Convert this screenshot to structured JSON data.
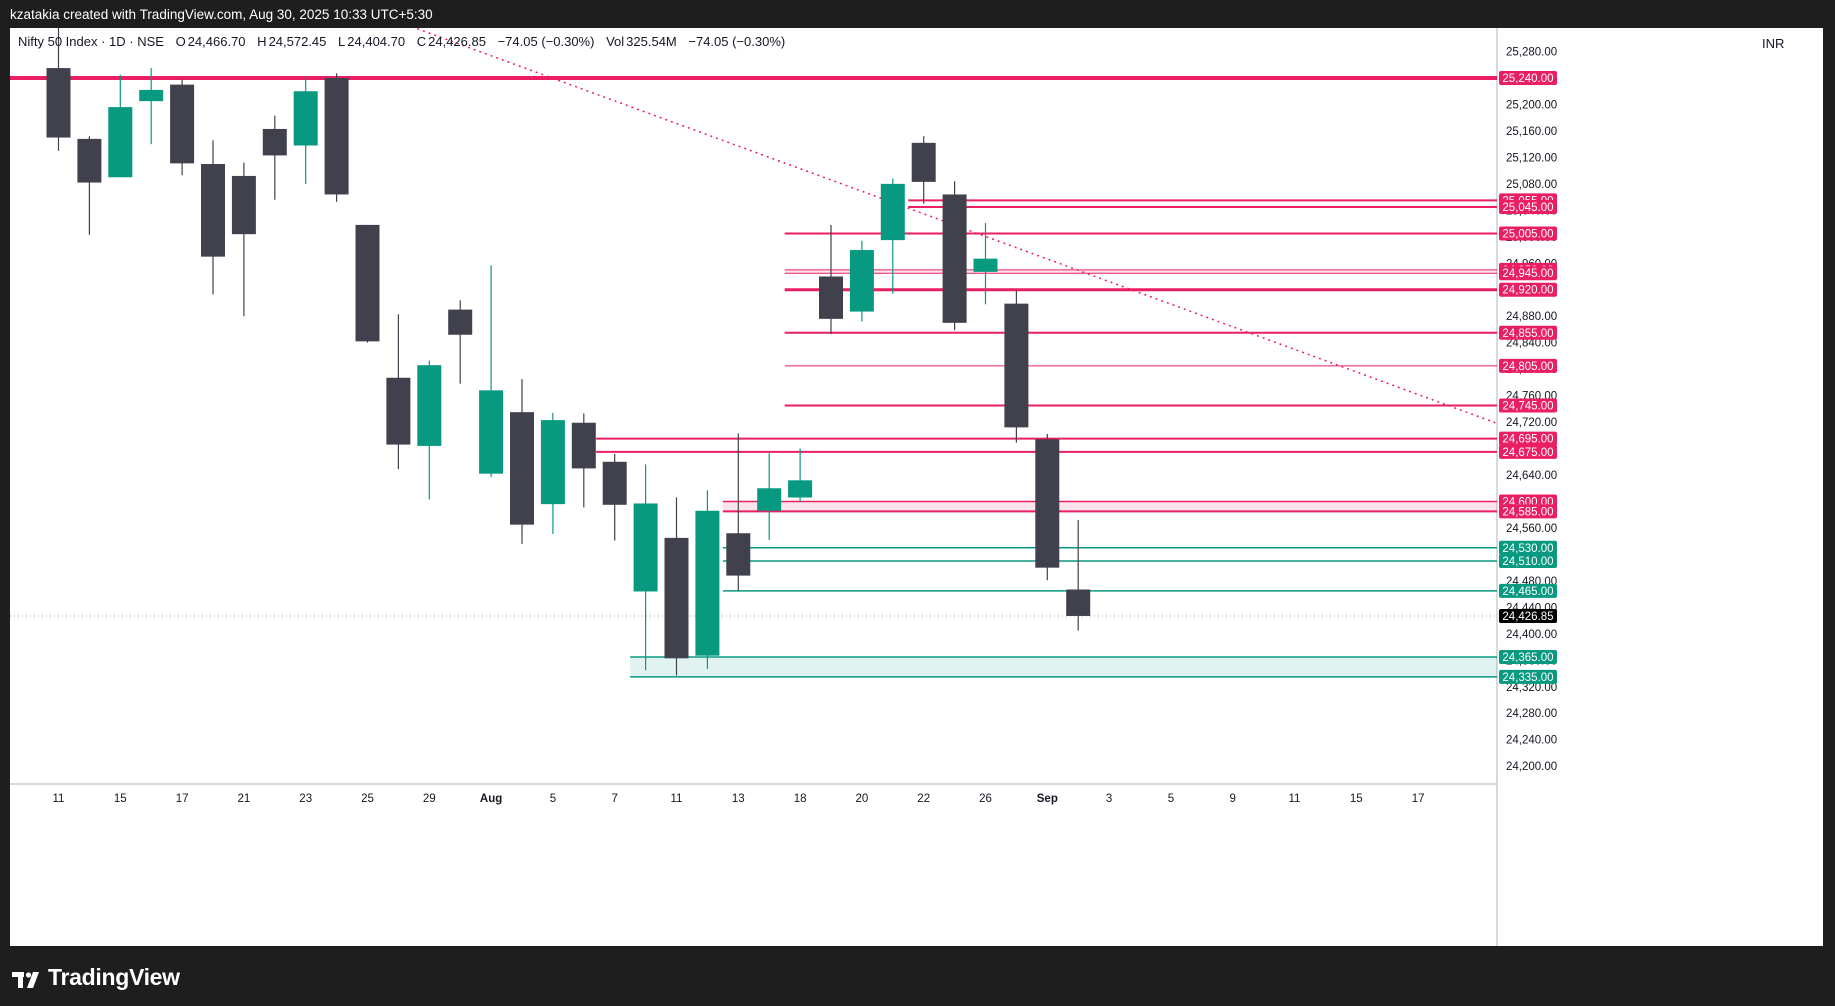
{
  "header": {
    "attribution": "kzatakia created with TradingView.com, Aug 30, 2025 10:33 UTC+5:30"
  },
  "legend": {
    "symbol": "Nifty 50 Index · 1D · NSE",
    "open_label": "O",
    "open": "24,466.70",
    "high_label": "H",
    "high": "24,572.45",
    "low_label": "L",
    "low": "24,404.70",
    "close_label": "C",
    "close": "24,426.85",
    "change": "−74.05 (−0.30%)",
    "vol_label": "Vol",
    "vol": "325.54M",
    "vol_change": "−74.05 (−0.30%)"
  },
  "currency": "INR",
  "footer": {
    "brand": "TradingView"
  },
  "colors": {
    "up": "#089981",
    "down": "#40414d",
    "resistance": "#e91e63",
    "support": "#089981",
    "last_price": "#000000"
  },
  "chart_data": {
    "type": "candlestick",
    "title": "Nifty 50 Index · 1D · NSE",
    "ylim": [
      24160,
      25300
    ],
    "y_ticks": [
      24200,
      24240,
      24280,
      24320,
      24360,
      24400,
      24440,
      24480,
      24520,
      24560,
      24600,
      24640,
      24680,
      24720,
      24760,
      24800,
      24840,
      24880,
      24920,
      24960,
      25000,
      25040,
      25080,
      25120,
      25160,
      25200,
      25240,
      25280
    ],
    "x_labels": [
      {
        "i": 0,
        "label": "11"
      },
      {
        "i": 2,
        "label": "15"
      },
      {
        "i": 4,
        "label": "17"
      },
      {
        "i": 6,
        "label": "21"
      },
      {
        "i": 8,
        "label": "23"
      },
      {
        "i": 10,
        "label": "25"
      },
      {
        "i": 12,
        "label": "29"
      },
      {
        "i": 14,
        "label": "Aug",
        "bold": true
      },
      {
        "i": 16,
        "label": "5"
      },
      {
        "i": 18,
        "label": "7"
      },
      {
        "i": 20,
        "label": "11"
      },
      {
        "i": 22,
        "label": "13"
      },
      {
        "i": 24,
        "label": "18"
      },
      {
        "i": 26,
        "label": "20"
      },
      {
        "i": 28,
        "label": "22"
      },
      {
        "i": 30,
        "label": "26"
      },
      {
        "i": 32,
        "label": "Sep",
        "bold": true
      },
      {
        "i": 34,
        "label": "3"
      },
      {
        "i": 36,
        "label": "5"
      },
      {
        "i": 38,
        "label": "9"
      },
      {
        "i": 40,
        "label": "11"
      },
      {
        "i": 42,
        "label": "15"
      },
      {
        "i": 44,
        "label": "17"
      }
    ],
    "candles": [
      {
        "date": "Jul 11",
        "o": 25255,
        "h": 25322,
        "l": 25130,
        "c": 25150
      },
      {
        "date": "Jul 14",
        "o": 25148,
        "h": 25152,
        "l": 25003,
        "c": 25082
      },
      {
        "date": "Jul 15",
        "o": 25090,
        "h": 25245,
        "l": 25090,
        "c": 25196
      },
      {
        "date": "Jul 16",
        "o": 25205,
        "h": 25255,
        "l": 25140,
        "c": 25222
      },
      {
        "date": "Jul 17",
        "o": 25230,
        "h": 25238,
        "l": 25093,
        "c": 25111
      },
      {
        "date": "Jul 18",
        "o": 25110,
        "h": 25146,
        "l": 24913,
        "c": 24970
      },
      {
        "date": "Jul 21",
        "o": 25092,
        "h": 25112,
        "l": 24880,
        "c": 25004
      },
      {
        "date": "Jul 22",
        "o": 25163,
        "h": 25183,
        "l": 25056,
        "c": 25123
      },
      {
        "date": "Jul 23",
        "o": 25138,
        "h": 25243,
        "l": 25080,
        "c": 25220
      },
      {
        "date": "Jul 24",
        "o": 25240,
        "h": 25247,
        "l": 25053,
        "c": 25064
      },
      {
        "date": "Jul 25",
        "o": 25018,
        "h": 25018,
        "l": 24840,
        "c": 24842
      },
      {
        "date": "Jul 28",
        "o": 24787,
        "h": 24883,
        "l": 24649,
        "c": 24686
      },
      {
        "date": "Jul 29",
        "o": 24684,
        "h": 24813,
        "l": 24603,
        "c": 24806
      },
      {
        "date": "Jul 30",
        "o": 24890,
        "h": 24904,
        "l": 24778,
        "c": 24852
      },
      {
        "date": "Jul 31",
        "o": 24642,
        "h": 24957,
        "l": 24637,
        "c": 24768
      },
      {
        "date": "Aug 1",
        "o": 24735,
        "h": 24785,
        "l": 24536,
        "c": 24565
      },
      {
        "date": "Aug 4",
        "o": 24596,
        "h": 24734,
        "l": 24551,
        "c": 24723
      },
      {
        "date": "Aug 5",
        "o": 24719,
        "h": 24733,
        "l": 24591,
        "c": 24650
      },
      {
        "date": "Aug 6",
        "o": 24660,
        "h": 24672,
        "l": 24541,
        "c": 24595
      },
      {
        "date": "Aug 7",
        "o": 24464,
        "h": 24656,
        "l": 24345,
        "c": 24597
      },
      {
        "date": "Aug 8",
        "o": 24545,
        "h": 24606,
        "l": 24337,
        "c": 24363
      },
      {
        "date": "Aug 11",
        "o": 24367,
        "h": 24617,
        "l": 24347,
        "c": 24586
      },
      {
        "date": "Aug 12",
        "o": 24552,
        "h": 24703,
        "l": 24465,
        "c": 24488
      },
      {
        "date": "Aug 13",
        "o": 24586,
        "h": 24673,
        "l": 24542,
        "c": 24620
      },
      {
        "date": "Aug 14",
        "o": 24606,
        "h": 24680,
        "l": 24600,
        "c": 24632
      },
      {
        "date": "Aug 18",
        "o": 24940,
        "h": 25018,
        "l": 24853,
        "c": 24876
      },
      {
        "date": "Aug 19",
        "o": 24887,
        "h": 24994,
        "l": 24872,
        "c": 24980
      },
      {
        "date": "Aug 20",
        "o": 24995,
        "h": 25088,
        "l": 24914,
        "c": 25080
      },
      {
        "date": "Aug 21",
        "o": 25142,
        "h": 25152,
        "l": 25050,
        "c": 25083
      },
      {
        "date": "Aug 22",
        "o": 25064,
        "h": 25084,
        "l": 24859,
        "c": 24870
      },
      {
        "date": "Aug 25",
        "o": 24947,
        "h": 25021,
        "l": 24898,
        "c": 24967
      },
      {
        "date": "Aug 26",
        "o": 24899,
        "h": 24919,
        "l": 24689,
        "c": 24712
      },
      {
        "date": "Aug 28",
        "o": 24694,
        "h": 24702,
        "l": 24481,
        "c": 24500
      },
      {
        "date": "Aug 29",
        "o": 24467,
        "h": 24572,
        "l": 24405,
        "c": 24427
      }
    ],
    "horizontal_lines": [
      {
        "price": 25240.0,
        "label": "25,240.00",
        "color": "#e91e63",
        "from": -1,
        "width": 4
      },
      {
        "price": 25055.0,
        "label": "25,055.00",
        "color": "#e91e63",
        "from": 27.5,
        "width": 2
      },
      {
        "price": 25045.0,
        "label": "25,045.00",
        "color": "#e91e63",
        "from": 27.5,
        "width": 2
      },
      {
        "price": 25005.0,
        "label": "25,005.00",
        "color": "#e91e63",
        "from": 23.5,
        "width": 2
      },
      {
        "price": 24950.0,
        "label": "24,950.00",
        "color": "#e91e63",
        "from": 23.5,
        "width": 1
      },
      {
        "price": 24945.0,
        "label": "24,945.00",
        "color": "#e91e63",
        "from": 23.5,
        "width": 1
      },
      {
        "price": 24920.0,
        "label": "24,920.00",
        "color": "#e91e63",
        "from": 23.5,
        "width": 3
      },
      {
        "price": 24855.0,
        "label": "24,855.00",
        "color": "#e91e63",
        "from": 23.5,
        "width": 2
      },
      {
        "price": 24805.0,
        "label": "24,805.00",
        "color": "#e91e63",
        "from": 23.5,
        "width": 1
      },
      {
        "price": 24745.0,
        "label": "24,745.00",
        "color": "#e91e63",
        "from": 23.5,
        "width": 2
      },
      {
        "price": 24695.0,
        "label": "24,695.00",
        "color": "#e91e63",
        "from": 17.4,
        "width": 2
      },
      {
        "price": 24675.0,
        "label": "24,675.00",
        "color": "#e91e63",
        "from": 17.4,
        "width": 2
      },
      {
        "price": 24600.0,
        "label": "24,600.00",
        "color": "#e91e63",
        "from": 21.5,
        "width": 1.5
      },
      {
        "price": 24585.0,
        "label": "24,585.00",
        "color": "#e91e63",
        "from": 21.5,
        "width": 2
      },
      {
        "price": 24530.0,
        "label": "24,530.00",
        "color": "#089981",
        "from": 21.5,
        "width": 1.5
      },
      {
        "price": 24510.0,
        "label": "24,510.00",
        "color": "#089981",
        "from": 21.5,
        "width": 1.5
      },
      {
        "price": 24465.0,
        "label": "24,465.00",
        "color": "#089981",
        "from": 21.5,
        "width": 1.5
      },
      {
        "price": 24365.0,
        "label": "24,365.00",
        "color": "#089981",
        "from": 18.5,
        "width": 1.5
      },
      {
        "price": 24335.0,
        "label": "24,335.00",
        "color": "#089981",
        "from": 18.5,
        "width": 1.5
      }
    ],
    "zones": [
      {
        "from_price": 24945.0,
        "to_price": 24950.0,
        "start": 23.5,
        "color": "#e91e63"
      },
      {
        "from_price": 24585.0,
        "to_price": 24600.0,
        "start": 21.5,
        "color": "#e91e63"
      },
      {
        "from_price": 24335.0,
        "to_price": 24365.0,
        "start": 18.5,
        "color": "#089981"
      }
    ],
    "trendline": {
      "start": [
        10.7,
        25330
      ],
      "end": [
        46.5,
        24719
      ],
      "color": "#e91e63",
      "style": "dotted"
    },
    "last_price": {
      "price": 24426.85,
      "label": "24,426.85"
    }
  }
}
